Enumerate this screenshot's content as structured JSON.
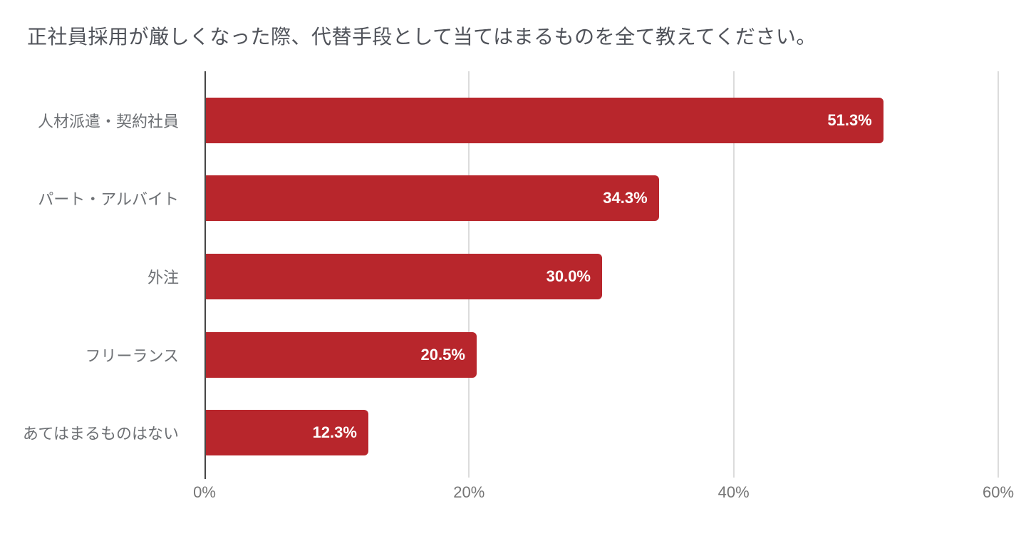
{
  "title": "正社員採用が厳しくなった際、代替手段として当てはまるものを全て教えてください。",
  "colors": {
    "bar": "#b8262c",
    "background": "#ffffff",
    "title_text": "#50535a",
    "category_text": "#6d7074",
    "tick_text": "#757575",
    "gridline": "#dcdcdc",
    "axis_line": "#464646",
    "value_text": "#ffffff"
  },
  "chart_data": {
    "type": "bar",
    "orientation": "horizontal",
    "title": "正社員採用が厳しくなった際、代替手段として当てはまるものを全て教えてください。",
    "categories": [
      "人材派遣・契約社員",
      "パート・アルバイト",
      "外注",
      "フリーランス",
      "あてはまるものはない"
    ],
    "values": [
      51.3,
      34.3,
      30.0,
      20.5,
      12.3
    ],
    "value_labels": [
      "51.3%",
      "34.3%",
      "30.0%",
      "20.5%",
      "12.3%"
    ],
    "xlabel": "",
    "ylabel": "",
    "xlim": [
      0,
      60
    ],
    "x_tick_values": [
      0,
      20,
      40,
      60
    ],
    "x_tick_labels": [
      "0%",
      "20%",
      "40%",
      "60%"
    ],
    "grid": true,
    "legend": "none"
  }
}
